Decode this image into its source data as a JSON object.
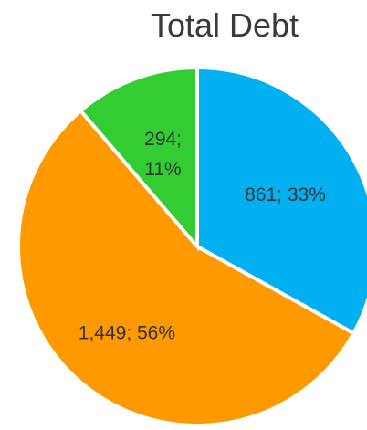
{
  "chart_data": {
    "type": "pie",
    "title": "Total Debt",
    "slices": [
      {
        "value": 861,
        "percent": "33%",
        "label_lines": [
          "861; 33%"
        ],
        "color": "#00B0F0"
      },
      {
        "value": 1449,
        "percent": "56%",
        "label_lines": [
          "1,449; 56%"
        ],
        "color": "#FF9900"
      },
      {
        "value": 294,
        "percent": "11%",
        "label_lines": [
          "294;",
          "11%"
        ],
        "color": "#33CC33"
      }
    ],
    "legend": "none"
  }
}
